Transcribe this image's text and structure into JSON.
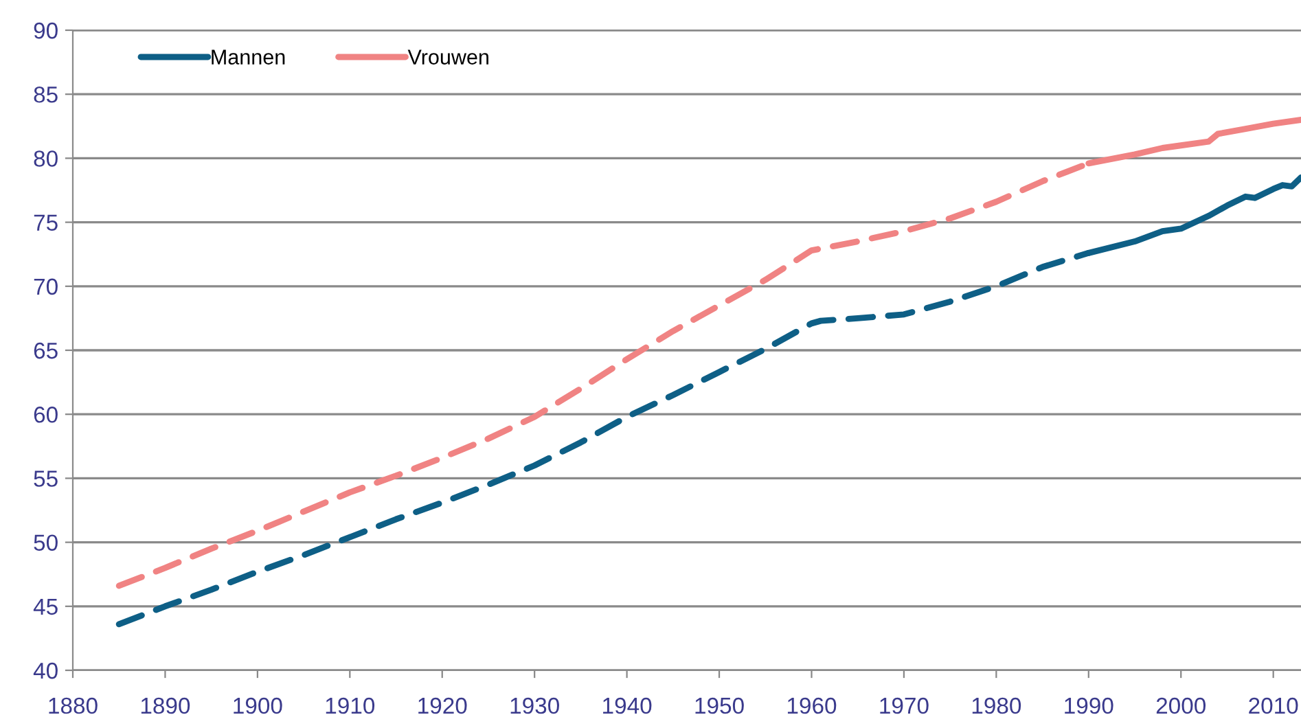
{
  "chart_data": {
    "type": "line",
    "series": [
      {
        "color": "#0e5f86",
        "line_style": "dashed",
        "x": [
          1885,
          1890,
          1895,
          1900,
          1905,
          1910,
          1915,
          1920,
          1925,
          1930,
          1935,
          1940,
          1945,
          1950,
          1955,
          1960,
          1961,
          1965,
          1970,
          1975,
          1980,
          1985,
          1990
        ],
        "values": [
          43.6,
          45.0,
          46.3,
          47.7,
          49.0,
          50.4,
          51.8,
          53.1,
          54.5,
          56.0,
          57.8,
          59.8,
          61.5,
          63.3,
          65.1,
          67.1,
          67.3,
          67.5,
          67.8,
          68.8,
          70.0,
          71.5,
          72.6
        ]
      },
      {
        "color": "#f08383",
        "line_style": "dashed",
        "x": [
          1885,
          1890,
          1895,
          1900,
          1905,
          1910,
          1915,
          1920,
          1925,
          1930,
          1935,
          1940,
          1945,
          1950,
          1955,
          1960,
          1965,
          1970,
          1975,
          1980,
          1985,
          1990
        ],
        "values": [
          46.6,
          48.0,
          49.5,
          50.9,
          52.4,
          53.9,
          55.2,
          56.6,
          58.1,
          59.8,
          62.0,
          64.3,
          66.5,
          68.5,
          70.5,
          72.8,
          73.5,
          74.3,
          75.3,
          76.6,
          78.2,
          79.6
        ]
      },
      {
        "name": "Mannen",
        "color": "#0e5f86",
        "line_style": "solid",
        "x": [
          1990,
          1995,
          1998,
          2000,
          2003,
          2005,
          2007,
          2008,
          2010,
          2011,
          2012,
          2013
        ],
        "values": [
          72.6,
          73.5,
          74.3,
          74.5,
          75.5,
          76.3,
          77.0,
          76.9,
          77.6,
          77.9,
          77.8,
          78.5
        ]
      },
      {
        "name": "Vrouwen",
        "color": "#f08383",
        "line_style": "solid",
        "x": [
          1990,
          1995,
          1998,
          2000,
          2003,
          2004,
          2007,
          2010,
          2013
        ],
        "values": [
          79.6,
          80.3,
          80.8,
          81.0,
          81.3,
          81.9,
          82.3,
          82.7,
          83.0
        ]
      }
    ],
    "xlim": [
      1880,
      2013
    ],
    "xticks": [
      1880,
      1890,
      1900,
      1910,
      1920,
      1930,
      1940,
      1950,
      1960,
      1970,
      1980,
      1990,
      2000,
      2010
    ],
    "ylim": [
      40,
      90
    ],
    "yticks": [
      40,
      45,
      50,
      55,
      60,
      65,
      70,
      75,
      80,
      85,
      90
    ],
    "grid": "y",
    "legend": "top left",
    "marker": "none"
  }
}
